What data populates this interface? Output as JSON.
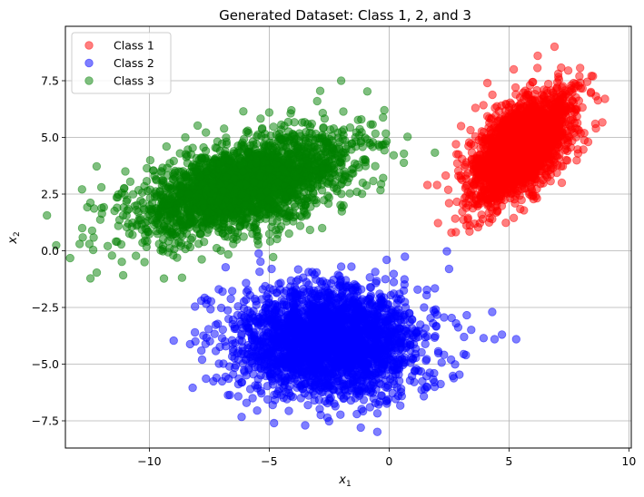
{
  "chart_data": {
    "type": "scatter",
    "title": "Generated Dataset: Class 1, 2, and 3",
    "xlabel": "x",
    "xlabel_sub": "1",
    "ylabel": "x",
    "ylabel_sub": "2",
    "xlim": [
      -13.5,
      10.1
    ],
    "ylim": [
      -8.7,
      9.9
    ],
    "xticks": [
      {
        "value": -10,
        "label": "−10"
      },
      {
        "value": -5,
        "label": "−5"
      },
      {
        "value": 0,
        "label": "0"
      },
      {
        "value": 5,
        "label": "5"
      },
      {
        "value": 10,
        "label": "10"
      }
    ],
    "yticks": [
      {
        "value": -7.5,
        "label": "−7.5"
      },
      {
        "value": -5.0,
        "label": "−5.0"
      },
      {
        "value": -2.5,
        "label": "−2.5"
      },
      {
        "value": 0.0,
        "label": "0.0"
      },
      {
        "value": 2.5,
        "label": "2.5"
      },
      {
        "value": 5.0,
        "label": "5.0"
      },
      {
        "value": 7.5,
        "label": "7.5"
      }
    ],
    "grid": true,
    "legend_position": "top-left",
    "series": [
      {
        "name": "Class 1",
        "color": "#ff0000",
        "alpha": 0.5,
        "mean": [
          5.5,
          4.5
        ],
        "std": [
          1.0,
          1.15
        ],
        "corr": 0.6,
        "points": [
          [
            9.0,
            6.7
          ],
          [
            8.5,
            7.7
          ],
          [
            8.6,
            5.6
          ],
          [
            8.3,
            4.8
          ],
          [
            4.3,
            1.4
          ],
          [
            3.9,
            1.4
          ],
          [
            2.6,
            0.8
          ],
          [
            2.5,
            2.1
          ],
          [
            1.6,
            2.9
          ],
          [
            2.0,
            2.9
          ],
          [
            6.9,
            9.0
          ],
          [
            6.2,
            8.6
          ],
          [
            3.0,
            5.5
          ],
          [
            3.6,
            6.3
          ],
          [
            4.1,
            7.4
          ],
          [
            5.2,
            8.0
          ]
        ]
      },
      {
        "name": "Class 2",
        "color": "#0000ff",
        "alpha": 0.5,
        "mean": [
          -2.5,
          -4.0
        ],
        "std": [
          1.9,
          1.2
        ],
        "corr": 0.0,
        "points": [
          [
            5.3,
            -3.9
          ],
          [
            4.3,
            -2.7
          ],
          [
            4.4,
            -3.9
          ],
          [
            2.5,
            -0.8
          ],
          [
            -0.1,
            -0.4
          ],
          [
            -2.0,
            -0.7
          ],
          [
            -4.9,
            -0.8
          ],
          [
            -7.1,
            -1.7
          ],
          [
            -8.1,
            -3.6
          ],
          [
            -7.8,
            -4.8
          ],
          [
            -7.2,
            -5.6
          ],
          [
            -4.8,
            -7.6
          ],
          [
            -3.5,
            -7.7
          ],
          [
            -0.8,
            -6.9
          ],
          [
            1.9,
            -6.0
          ],
          [
            3.2,
            -4.6
          ]
        ]
      },
      {
        "name": "Class 3",
        "color": "#008000",
        "alpha": 0.5,
        "mean": [
          -6.0,
          2.9
        ],
        "std": [
          2.2,
          1.15
        ],
        "corr": 0.55,
        "points": [
          [
            -2.0,
            7.5
          ],
          [
            -0.4,
            4.6
          ],
          [
            -0.2,
            6.2
          ],
          [
            -1.9,
            2.0
          ],
          [
            -4.0,
            1.3
          ],
          [
            -10.2,
            -0.5
          ],
          [
            -12.5,
            0.3
          ],
          [
            -12.8,
            1.0
          ],
          [
            -12.0,
            2.8
          ],
          [
            -11.0,
            3.5
          ],
          [
            -8.5,
            5.0
          ],
          [
            -5.0,
            6.1
          ],
          [
            -3.0,
            6.6
          ],
          [
            -1.1,
            3.0
          ],
          [
            -6.5,
            0.3
          ],
          [
            -9.0,
            -0.2
          ]
        ]
      }
    ]
  }
}
